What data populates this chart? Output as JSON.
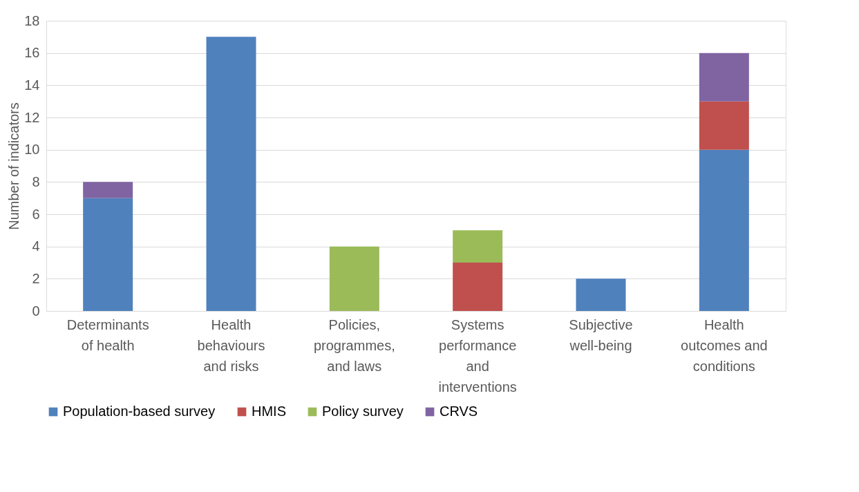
{
  "chart_data": {
    "type": "bar",
    "stacked": true,
    "ylabel": "Number of indicators",
    "categories": [
      "Determinants of health",
      "Health behaviours and risks",
      "Policies, programmes, and laws",
      "Systems performance and interventions",
      "Subjective well-being",
      "Health outcomes and conditions"
    ],
    "series": [
      {
        "name": "Population-based survey",
        "color": "#4f81bd",
        "values": [
          7,
          17,
          null,
          null,
          2,
          10
        ]
      },
      {
        "name": "HMIS",
        "color": "#c0504d",
        "values": [
          null,
          null,
          null,
          3,
          null,
          3
        ]
      },
      {
        "name": "Policy survey",
        "color": "#9bbb59",
        "values": [
          null,
          null,
          4,
          2,
          null,
          null
        ]
      },
      {
        "name": "CRVS",
        "color": "#8064a2",
        "values": [
          1,
          null,
          null,
          null,
          null,
          3
        ]
      }
    ],
    "ylim": [
      0,
      18
    ],
    "yticks": [
      0,
      2,
      4,
      6,
      8,
      10,
      12,
      14,
      16,
      18
    ],
    "grid": "y",
    "legend": "bottom"
  }
}
